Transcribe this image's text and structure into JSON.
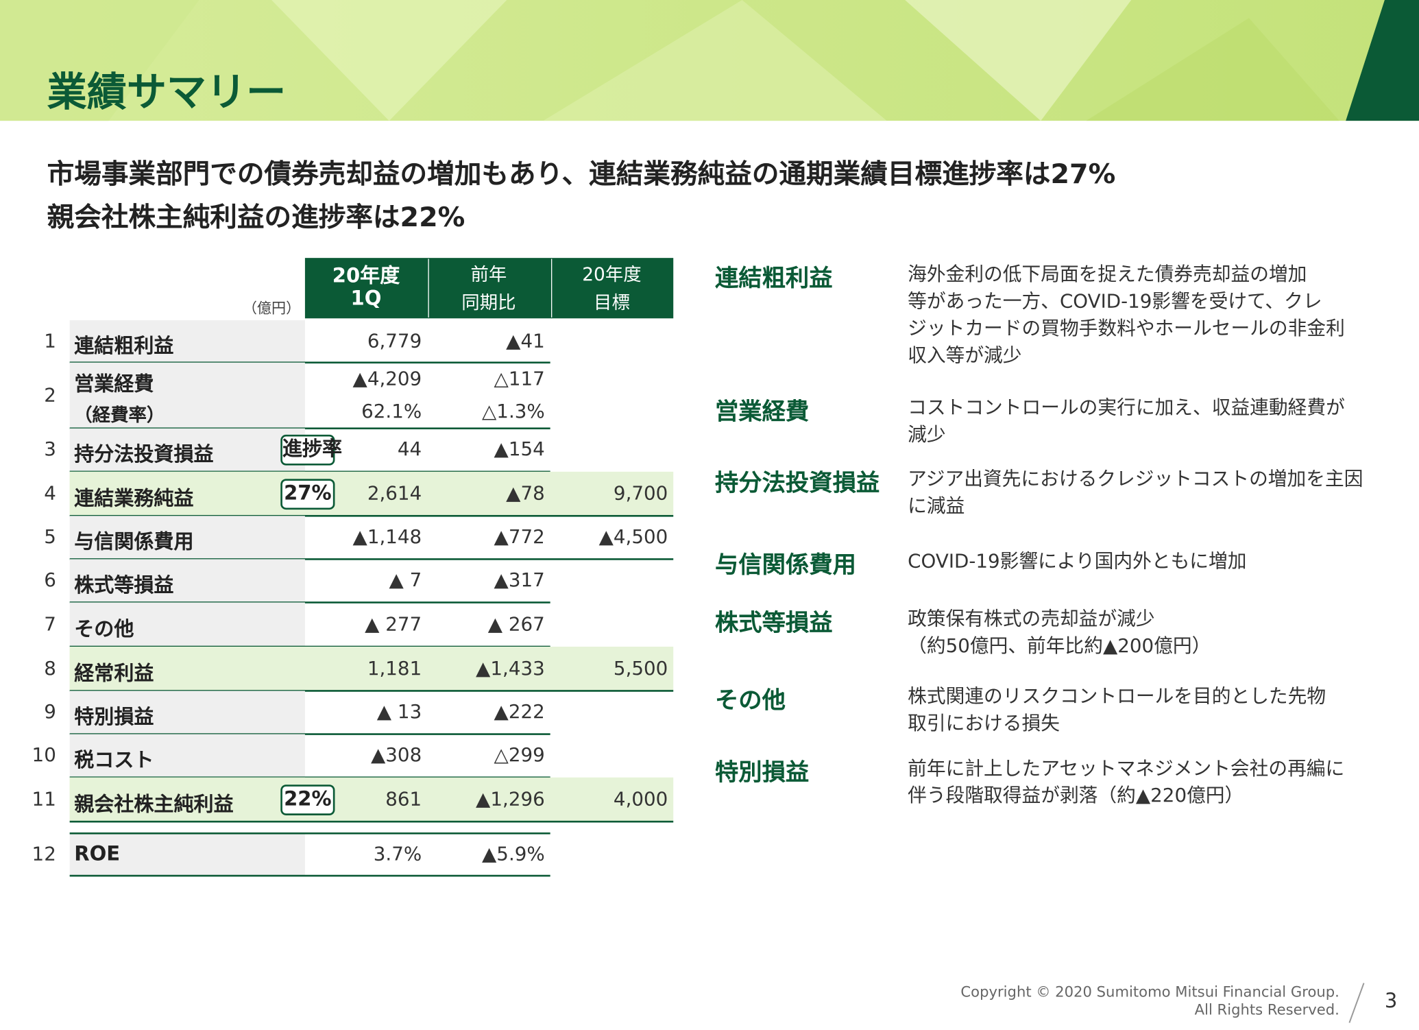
{
  "header": {
    "title": "業績サマリー"
  },
  "headline": [
    "市場事業部門での債券売却益の増加もあり、連結業務純益の通期業績目標進捗率は27%",
    "親会社株主純利益の進捗率は22%"
  ],
  "table": {
    "unit": "（億円）",
    "columns": [
      [
        "20年度",
        "1Q"
      ],
      [
        "前年",
        "同期比"
      ],
      [
        "20年度",
        "目標"
      ]
    ],
    "rows": [
      {
        "no": "1",
        "label": "連結粗利益",
        "cells": [
          "6,779",
          "▲41"
        ]
      },
      {
        "no": "2",
        "label": "営業経費",
        "sub_label": "（経費率）",
        "cells": [
          "▲4,209",
          "△117"
        ],
        "sub_cells": [
          "62.1%",
          "△1.3%"
        ]
      },
      {
        "no": "3",
        "label": "持分法投資損益",
        "badge": "進捗率",
        "cells": [
          "44",
          "▲154"
        ]
      },
      {
        "no": "4",
        "label": "連結業務純益",
        "badge": "27%",
        "cells": [
          "2,614",
          "▲78",
          "9,700"
        ]
      },
      {
        "no": "5",
        "label": "与信関係費用",
        "cells": [
          "▲1,148",
          "▲772",
          "▲4,500"
        ]
      },
      {
        "no": "6",
        "label": "株式等損益",
        "cells": [
          "▲ 7",
          "▲317"
        ]
      },
      {
        "no": "7",
        "label": "その他",
        "cells": [
          "▲ 277",
          "▲ 267"
        ]
      },
      {
        "no": "8",
        "label": "経常利益",
        "cells": [
          "1,181",
          "▲1,433",
          "5,500"
        ]
      },
      {
        "no": "9",
        "label": "特別損益",
        "cells": [
          "▲ 13",
          "▲222"
        ]
      },
      {
        "no": "10",
        "label": "税コスト",
        "cells": [
          "▲308",
          "△299"
        ]
      },
      {
        "no": "11",
        "label": "親会社株主純利益",
        "badge": "22%",
        "cells": [
          "861",
          "▲1,296",
          "4,000"
        ]
      },
      {
        "no": "12",
        "label": "ROE",
        "cells": [
          "3.7%",
          "▲5.9%"
        ]
      }
    ]
  },
  "notes": [
    {
      "title": "連結粗利益",
      "lines": [
        "海外金利の低下局面を捉えた債券売却益の増加",
        "等があった一方、COVID-19影響を受けて、クレ",
        "ジットカードの買物手数料やホールセールの非金利",
        "収入等が減少"
      ]
    },
    {
      "title": "営業経費",
      "lines": [
        "コストコントロールの実行に加え、収益連動経費が",
        "減少"
      ]
    },
    {
      "title": "持分法投資損益",
      "lines": [
        "アジア出資先におけるクレジットコストの増加を主因",
        "に減益"
      ]
    },
    {
      "title": "与信関係費用",
      "lines": [
        "COVID-19影響により国内外ともに増加"
      ]
    },
    {
      "title": "株式等損益",
      "lines": [
        "政策保有株式の売却益が減少",
        "（約50億円、前年比約▲200億円）"
      ]
    },
    {
      "title": "その他",
      "lines": [
        "株式関連のリスクコントロールを目的とした先物",
        "取引における損失"
      ]
    },
    {
      "title": "特別損益",
      "lines": [
        "前年に計上したアセットマネジメント会社の再編に",
        "伴う段階取得益が剥落（約▲220億円）"
      ]
    }
  ],
  "footer": {
    "copyright": [
      "Copyright © 2020 Sumitomo Mitsui Financial Group.",
      "All Rights Reserved."
    ],
    "page": "3"
  }
}
